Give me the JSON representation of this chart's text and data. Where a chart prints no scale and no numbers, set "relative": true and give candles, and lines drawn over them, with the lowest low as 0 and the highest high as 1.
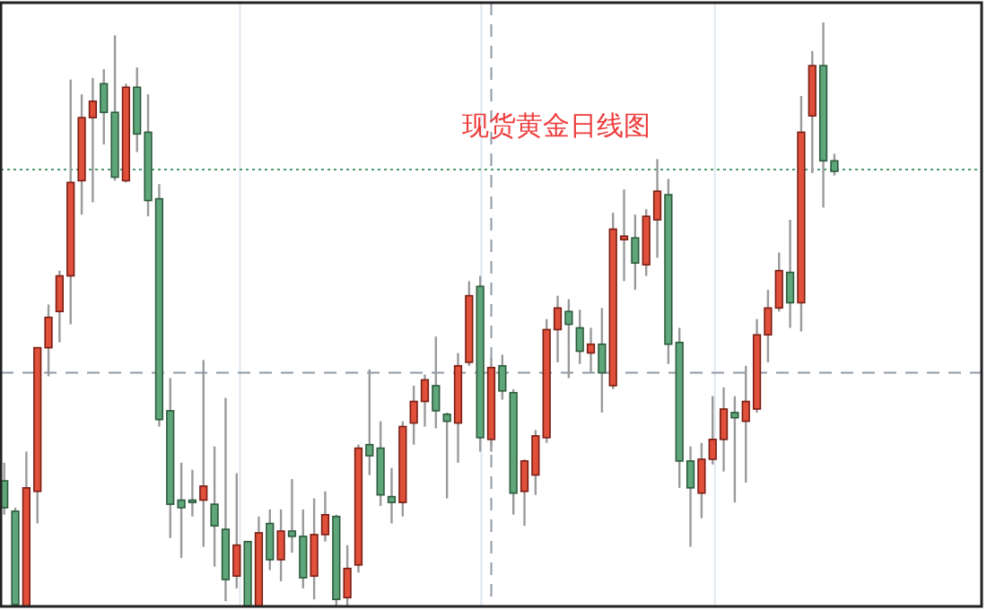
{
  "chart_data": {
    "type": "candlestick",
    "title": "现货黄金日线图",
    "relative": true,
    "categories": [
      null,
      null,
      null,
      null,
      null,
      null,
      null,
      null,
      null,
      null,
      null,
      null,
      null,
      null,
      null,
      null,
      null,
      null,
      null,
      null,
      null,
      null,
      null,
      null,
      null,
      null,
      null,
      null,
      null,
      null,
      null,
      null,
      null,
      null,
      null,
      null,
      null,
      null,
      null,
      null,
      null,
      null,
      null,
      null,
      null,
      null,
      null,
      null,
      null,
      null,
      null,
      null,
      null,
      null,
      null,
      null,
      null,
      null,
      null,
      null,
      null,
      null,
      null,
      null,
      null,
      null,
      null,
      null,
      null,
      null,
      null,
      null,
      null,
      null,
      null,
      null,
      null,
      null,
      null,
      null,
      null,
      null,
      null,
      null,
      null,
      null,
      null,
      null,
      null
    ],
    "ohlc": [
      [
        0.215,
        0.246,
        0.157,
        0.169
      ],
      [
        0.163,
        0.169,
        0,
        0.003
      ],
      [
        0,
        0.265,
        0,
        0.203
      ],
      [
        0.197,
        0.443,
        0.142,
        0.443
      ],
      [
        0.443,
        0.517,
        0.394,
        0.495
      ],
      [
        0.505,
        0.575,
        0.452,
        0.566
      ],
      [
        0.566,
        0.902,
        0.483,
        0.726
      ],
      [
        0.729,
        0.877,
        0.671,
        0.837
      ],
      [
        0.837,
        0.905,
        0.692,
        0.865
      ],
      [
        0.895,
        0.92,
        0.791,
        0.846
      ],
      [
        0.846,
        0.978,
        0.729,
        0.735
      ],
      [
        0.729,
        0.895,
        0.726,
        0.889
      ],
      [
        0.889,
        0.923,
        0.778,
        0.809
      ],
      [
        0.812,
        0.877,
        0.668,
        0.695
      ],
      [
        0.698,
        0.723,
        0.308,
        0.32
      ],
      [
        0.335,
        0.391,
        0.117,
        0.175
      ],
      [
        0.182,
        0.246,
        0.083,
        0.169
      ],
      [
        0.182,
        0.234,
        0.154,
        0.178
      ],
      [
        0.182,
        0.422,
        0.102,
        0.206
      ],
      [
        0.175,
        0.274,
        0.068,
        0.138
      ],
      [
        0.132,
        0.357,
        0.009,
        0.046
      ],
      [
        0.052,
        0.228,
        0.031,
        0.105
      ],
      [
        0.111,
        0.111,
        0,
        0
      ],
      [
        0,
        0.154,
        0,
        0.126
      ],
      [
        0.142,
        0.166,
        0.062,
        0.08
      ],
      [
        0.08,
        0.166,
        0.043,
        0.129
      ],
      [
        0.129,
        0.218,
        0.092,
        0.12
      ],
      [
        0.12,
        0.166,
        0.031,
        0.049
      ],
      [
        0.052,
        0.185,
        0.012,
        0.123
      ],
      [
        0.123,
        0.197,
        0.111,
        0.157
      ],
      [
        0.154,
        0.157,
        0,
        0.012
      ],
      [
        0.015,
        0.105,
        0,
        0.065
      ],
      [
        0.071,
        0.277,
        0.058,
        0.271
      ],
      [
        0.277,
        0.406,
        0.225,
        0.258
      ],
      [
        0.271,
        0.317,
        0.172,
        0.191
      ],
      [
        0.188,
        0.237,
        0.142,
        0.178
      ],
      [
        0.178,
        0.317,
        0.154,
        0.308
      ],
      [
        0.314,
        0.378,
        0.277,
        0.351
      ],
      [
        0.351,
        0.397,
        0.308,
        0.388
      ],
      [
        0.378,
        0.462,
        0.305,
        0.335
      ],
      [
        0.329,
        0.332,
        0.185,
        0.317
      ],
      [
        0.314,
        0.434,
        0.246,
        0.412
      ],
      [
        0.418,
        0.557,
        0.412,
        0.532
      ],
      [
        0.548,
        0.566,
        0.265,
        0.289
      ],
      [
        0.286,
        0.425,
        0.265,
        0.409
      ],
      [
        0.412,
        0.431,
        0.354,
        0.369
      ],
      [
        0.366,
        0.372,
        0.157,
        0.194
      ],
      [
        0.197,
        0.252,
        0.138,
        0.249
      ],
      [
        0.225,
        0.302,
        0.191,
        0.292
      ],
      [
        0.289,
        0.492,
        0.28,
        0.474
      ],
      [
        0.474,
        0.532,
        0.418,
        0.511
      ],
      [
        0.505,
        0.526,
        0.391,
        0.483
      ],
      [
        0.477,
        0.508,
        0.415,
        0.437
      ],
      [
        0.434,
        0.477,
        0.4,
        0.449
      ],
      [
        0.449,
        0.511,
        0.332,
        0.4
      ],
      [
        0.378,
        0.674,
        0.372,
        0.646
      ],
      [
        0.628,
        0.714,
        0.557,
        0.634
      ],
      [
        0.631,
        0.671,
        0.542,
        0.588
      ],
      [
        0.585,
        0.68,
        0.566,
        0.668
      ],
      [
        0.662,
        0.766,
        0.597,
        0.711
      ],
      [
        0.705,
        0.732,
        0.415,
        0.449
      ],
      [
        0.452,
        0.477,
        0.203,
        0.249
      ],
      [
        0.249,
        0.274,
        0.102,
        0.203
      ],
      [
        0.194,
        0.28,
        0.151,
        0.252
      ],
      [
        0.252,
        0.36,
        0.243,
        0.286
      ],
      [
        0.286,
        0.375,
        0.231,
        0.338
      ],
      [
        0.332,
        0.36,
        0.178,
        0.323
      ],
      [
        0.317,
        0.412,
        0.212,
        0.351
      ],
      [
        0.338,
        0.492,
        0.332,
        0.465
      ],
      [
        0.465,
        0.542,
        0.418,
        0.511
      ],
      [
        0.511,
        0.606,
        0.505,
        0.575
      ],
      [
        0.572,
        0.662,
        0.477,
        0.52
      ],
      [
        0.52,
        0.874,
        0.471,
        0.812
      ],
      [
        0.84,
        0.951,
        0.742,
        0.926
      ],
      [
        0.926,
        1,
        0.683,
        0.763
      ],
      [
        0.763,
        0.775,
        0.738,
        0.745
      ],
      null,
      null,
      null,
      null,
      null,
      null,
      null,
      null,
      null,
      null,
      null,
      null,
      null
    ],
    "ref_lines": [
      {
        "axis": "y",
        "value": 0.4,
        "color": "#8f9aa6",
        "line_style": "dashed"
      },
      {
        "axis": "y",
        "value": 0.748,
        "color": "#4f9a70",
        "line_style": "dotted"
      }
    ]
  }
}
